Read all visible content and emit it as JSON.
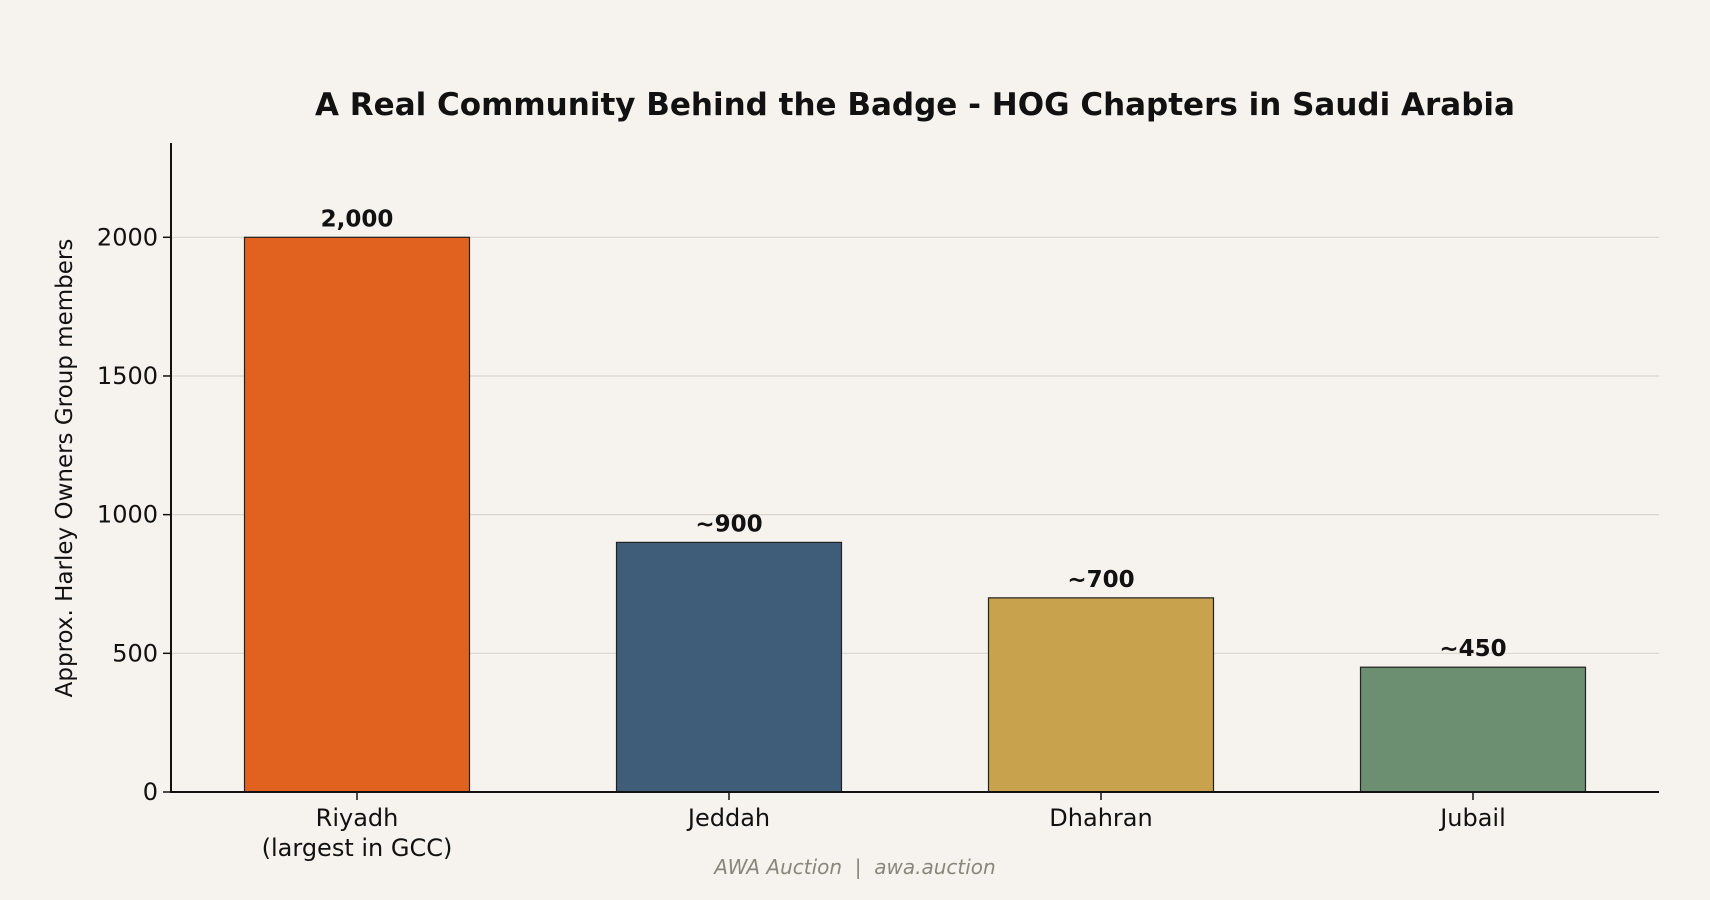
{
  "footer": "AWA Auction  |  awa.auction",
  "chart_data": {
    "type": "bar",
    "title": "A Real Community Behind the Badge - HOG Chapters in Saudi Arabia",
    "xlabel": "",
    "ylabel": "Approx. Harley Owners Group members",
    "categories": [
      [
        "Riyadh",
        "(largest in GCC)"
      ],
      [
        "Jeddah"
      ],
      [
        "Dhahran"
      ],
      [
        "Jubail"
      ]
    ],
    "values": [
      2000,
      900,
      700,
      450
    ],
    "data_labels": [
      "2,000",
      "~900",
      "~700",
      "~450"
    ],
    "colors": [
      "#e1611f",
      "#3f5d78",
      "#c8a24c",
      "#6b8f70"
    ],
    "ylim": [
      0,
      2340
    ],
    "yticks": [
      0,
      500,
      1000,
      1500,
      2000
    ],
    "grid": "horizontal",
    "legend": "none"
  }
}
